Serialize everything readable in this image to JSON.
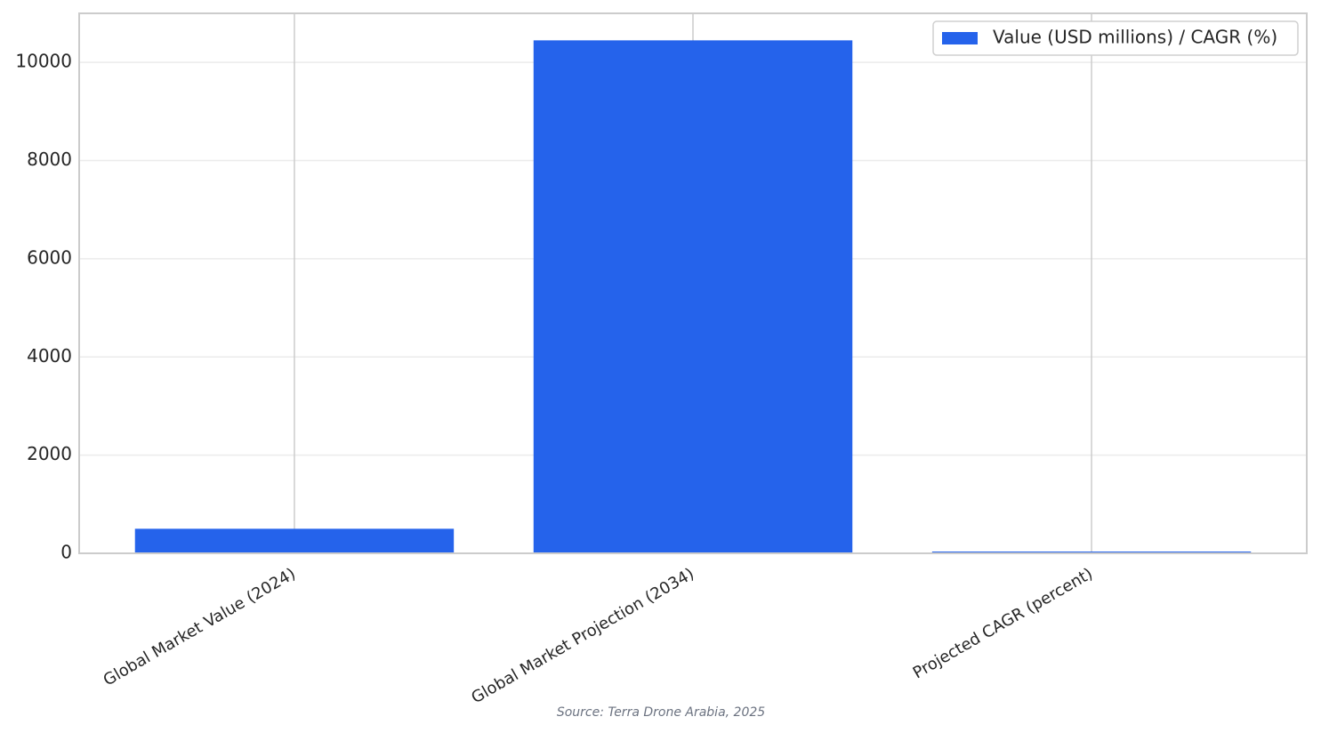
{
  "chart_data": {
    "type": "bar",
    "categories": [
      "Global Market Value (2024)",
      "Global Market Projection (2034)",
      "Projected CAGR (percent)"
    ],
    "series": [
      {
        "name": "Value (USD millions) / CAGR (%)",
        "color": "#2563eb",
        "values": [
          500,
          10450,
          36
        ]
      }
    ],
    "ylim": [
      0,
      11000
    ],
    "yticks": [
      0,
      2000,
      4000,
      6000,
      8000,
      10000
    ],
    "grid": true,
    "legend": "upper right",
    "source": "Source: Terra Drone Arabia, 2025"
  }
}
